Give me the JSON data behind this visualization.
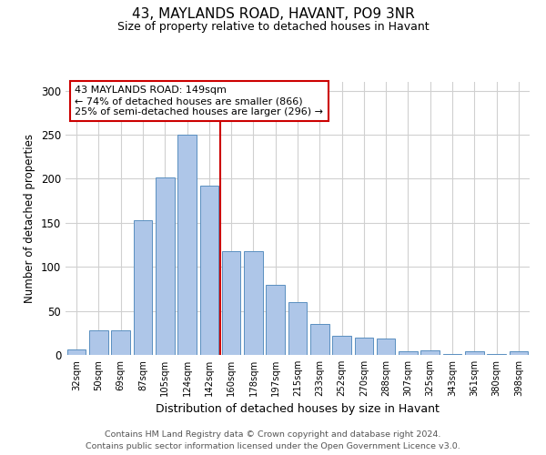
{
  "title": "43, MAYLANDS ROAD, HAVANT, PO9 3NR",
  "subtitle": "Size of property relative to detached houses in Havant",
  "xlabel": "Distribution of detached houses by size in Havant",
  "ylabel": "Number of detached properties",
  "bar_labels": [
    "32sqm",
    "50sqm",
    "69sqm",
    "87sqm",
    "105sqm",
    "124sqm",
    "142sqm",
    "160sqm",
    "178sqm",
    "197sqm",
    "215sqm",
    "233sqm",
    "252sqm",
    "270sqm",
    "288sqm",
    "307sqm",
    "325sqm",
    "343sqm",
    "361sqm",
    "380sqm",
    "398sqm"
  ],
  "bar_values": [
    6,
    28,
    28,
    153,
    202,
    250,
    192,
    118,
    118,
    80,
    60,
    35,
    22,
    20,
    19,
    4,
    5,
    1,
    4,
    1,
    4
  ],
  "bar_color": "#aec6e8",
  "bar_edgecolor": "#5a8fc0",
  "vline_color": "#cc0000",
  "annotation_title": "43 MAYLANDS ROAD: 149sqm",
  "annotation_line1": "← 74% of detached houses are smaller (866)",
  "annotation_line2": "25% of semi-detached houses are larger (296) →",
  "annotation_box_edgecolor": "#cc0000",
  "footer_line1": "Contains HM Land Registry data © Crown copyright and database right 2024.",
  "footer_line2": "Contains public sector information licensed under the Open Government Licence v3.0.",
  "ylim": [
    0,
    310
  ],
  "background_color": "#ffffff",
  "grid_color": "#d0d0d0"
}
